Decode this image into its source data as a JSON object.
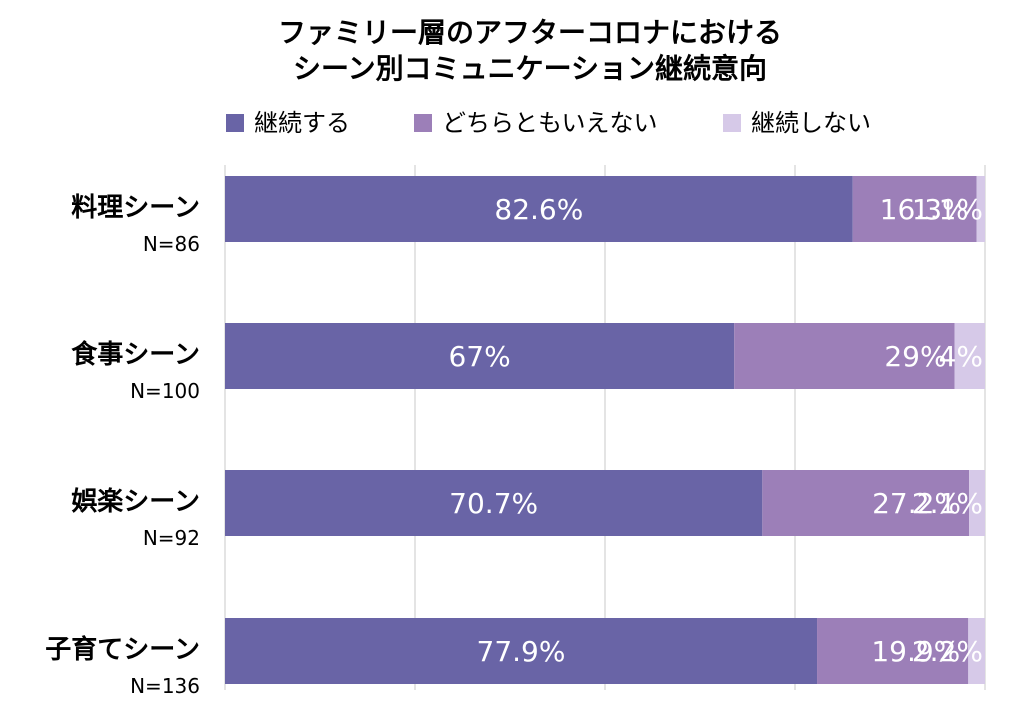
{
  "chart_data": {
    "type": "bar",
    "orientation": "horizontal",
    "stacked": true,
    "title": "ファミリー層のアフターコロナにおける\nシーン別コミュニケーション継続意向",
    "categories": [
      {
        "label": "料理シーン",
        "n": "N=86"
      },
      {
        "label": "食事シーン",
        "n": "N=100"
      },
      {
        "label": "娯楽シーン",
        "n": "N=92"
      },
      {
        "label": "子育てシーン",
        "n": "N=136"
      }
    ],
    "series": [
      {
        "name": "継続する",
        "color": "#6964a6",
        "values": [
          82.6,
          67,
          70.7,
          77.9
        ],
        "labels": [
          "82.6%",
          "67%",
          "70.7%",
          "77.9%"
        ]
      },
      {
        "name": "どちらともいえない",
        "color": "#9c7fb8",
        "values": [
          16.3,
          29,
          27.2,
          19.9
        ],
        "labels": [
          "16.3%",
          "29%",
          "27.2%",
          "19.9%"
        ]
      },
      {
        "name": "継続しない",
        "color": "#d6c9e8",
        "values": [
          1.1,
          4,
          2.1,
          2.2
        ],
        "labels": [
          "1.1%",
          "4%",
          "2.1%",
          "2.2%"
        ]
      }
    ],
    "xlim": [
      0,
      100
    ],
    "grid": true,
    "legend_position": "top"
  }
}
